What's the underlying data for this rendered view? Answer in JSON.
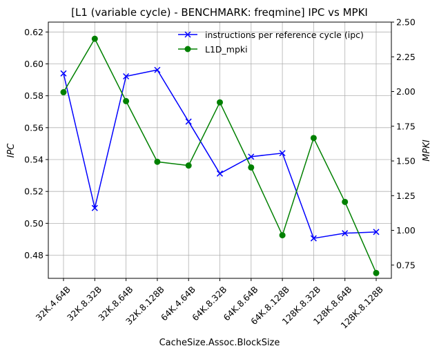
{
  "chart_data": {
    "type": "line",
    "title": "[L1 (variable cycle) - BENCHMARK: freqmine]  IPC vs MPKI",
    "xlabel": "CacheSize.Assoc.BlockSize",
    "ylabel_left": "IPC",
    "ylabel_right": "MPKI",
    "categories": [
      "32K.4.64B",
      "32K.8.32B",
      "32K.8.64B",
      "32K.8.128B",
      "64K.4.64B",
      "64K.8.32B",
      "64K.8.64B",
      "64K.8.128B",
      "128K.8.32B",
      "128K.8.64B",
      "128K.8.128B"
    ],
    "ylim_left": [
      0.4655,
      0.6262
    ],
    "ylim_right": [
      0.6546,
      2.5
    ],
    "yticks_left": [
      "0.48",
      "0.50",
      "0.52",
      "0.54",
      "0.56",
      "0.58",
      "0.60",
      "0.62"
    ],
    "yticks_left_values": [
      0.48,
      0.5,
      0.52,
      0.54,
      0.56,
      0.58,
      0.6,
      0.62
    ],
    "yticks_right": [
      "0.75",
      "1.00",
      "1.25",
      "1.50",
      "1.75",
      "2.00",
      "2.25",
      "2.50"
    ],
    "yticks_right_values": [
      0.75,
      1.0,
      1.25,
      1.5,
      1.75,
      2.0,
      2.25,
      2.5
    ],
    "grid": true,
    "legend_position": "top-right",
    "series": [
      {
        "name": "instructions per reference cycle (ipc)",
        "axis": "left",
        "color": "#0000ff",
        "marker": "x",
        "values": [
          0.594,
          0.5096,
          0.5922,
          0.5962,
          0.5638,
          0.5312,
          0.5418,
          0.544,
          0.4906,
          0.4938,
          0.4946
        ]
      },
      {
        "name": "L1D_mpki",
        "axis": "right",
        "color": "#008000",
        "marker": "o",
        "values": [
          1.995,
          2.38,
          1.931,
          1.494,
          1.467,
          1.922,
          1.453,
          0.965,
          1.665,
          1.205,
          0.693
        ]
      }
    ]
  }
}
